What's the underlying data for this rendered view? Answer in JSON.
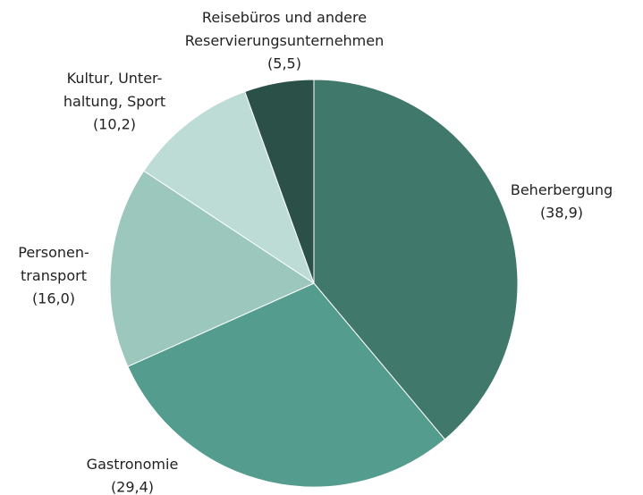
{
  "chart_data": {
    "type": "pie",
    "categories": [
      "Beherbergung",
      "Gastronomie",
      "Personen-\ntransport",
      "Kultur, Unter-\nhaltung, Sport",
      "Reisebüros und andere\nReservierungsunternehmen"
    ],
    "values": [
      38.9,
      29.4,
      16.0,
      10.2,
      5.5
    ],
    "value_labels": [
      "(38,9)",
      "(29,4)",
      "(16,0)",
      "(10,2)",
      "(5,5)"
    ],
    "colors": [
      "#41786c",
      "#549c8e",
      "#9bc7bc",
      "#bcdcd5",
      "#2a5048"
    ]
  }
}
